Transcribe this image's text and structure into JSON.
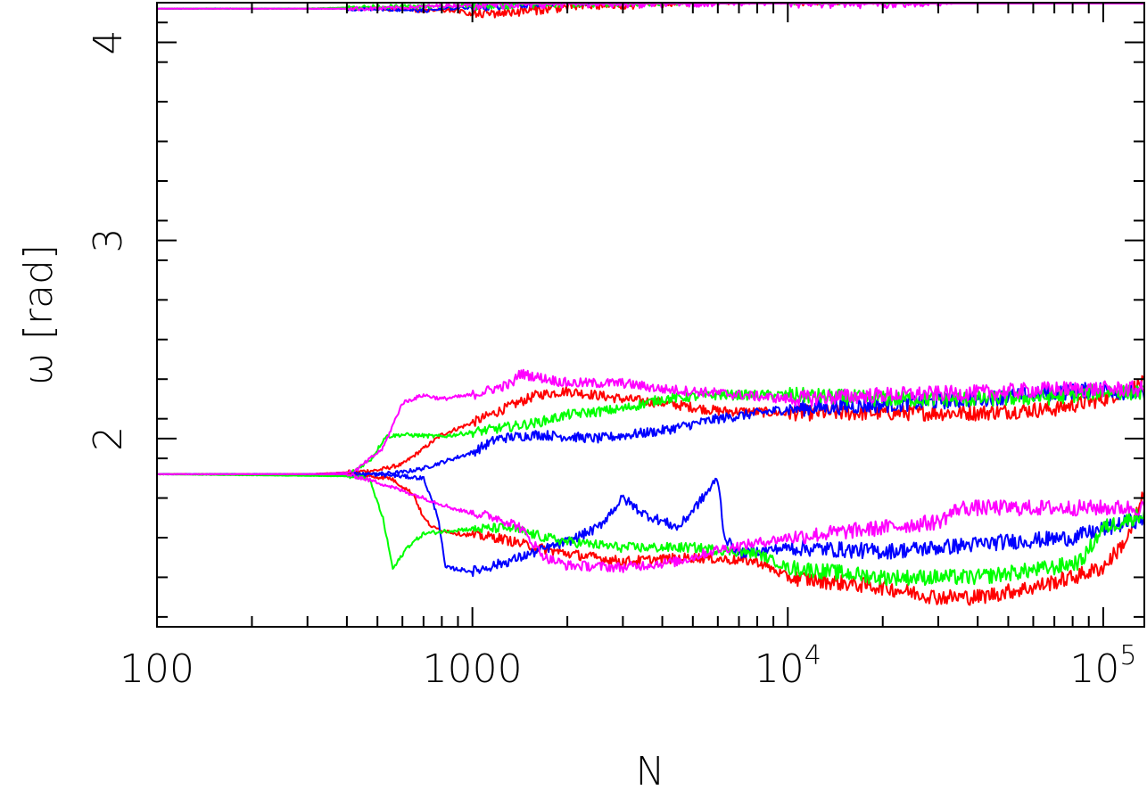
{
  "chart_data": {
    "type": "line",
    "xlabel": "N",
    "ylabel": "ω  [rad]",
    "xscale": "log",
    "xlim": [
      100,
      135000
    ],
    "ylim": [
      1.05,
      4.2
    ],
    "grid": false,
    "x_tick_labels": [
      {
        "value": 100,
        "base": "100",
        "exp": ""
      },
      {
        "value": 1000,
        "base": "1000",
        "exp": ""
      },
      {
        "value": 10000,
        "base": "10",
        "exp": "4"
      },
      {
        "value": 100000,
        "base": "10",
        "exp": "5"
      }
    ],
    "y_tick_labels": [
      {
        "value": 2,
        "label": "2"
      },
      {
        "value": 3,
        "label": "3"
      },
      {
        "value": 4,
        "label": "4"
      }
    ],
    "series": [
      {
        "color": "#ff0000",
        "points": [
          [
            100,
            1.82
          ],
          [
            300,
            1.82
          ],
          [
            400,
            1.83
          ],
          [
            500,
            1.84
          ],
          [
            600,
            1.87
          ],
          [
            700,
            1.95
          ],
          [
            800,
            2.02
          ],
          [
            1000,
            2.08
          ],
          [
            1300,
            2.16
          ],
          [
            1600,
            2.22
          ],
          [
            2000,
            2.24
          ],
          [
            3000,
            2.2
          ],
          [
            4000,
            2.18
          ],
          [
            6000,
            2.14
          ],
          [
            10000,
            2.13
          ],
          [
            20000,
            2.13
          ],
          [
            40000,
            2.13
          ],
          [
            70000,
            2.15
          ],
          [
            100000,
            2.2
          ],
          [
            135000,
            2.28
          ]
        ]
      },
      {
        "color": "#0000ff",
        "points": [
          [
            100,
            1.82
          ],
          [
            300,
            1.82
          ],
          [
            400,
            1.82
          ],
          [
            500,
            1.82
          ],
          [
            600,
            1.83
          ],
          [
            700,
            1.85
          ],
          [
            800,
            1.88
          ],
          [
            1000,
            1.93
          ],
          [
            1200,
            2.0
          ],
          [
            1600,
            2.02
          ],
          [
            2500,
            2.0
          ],
          [
            4000,
            2.04
          ],
          [
            6000,
            2.1
          ],
          [
            10000,
            2.15
          ],
          [
            20000,
            2.17
          ],
          [
            40000,
            2.2
          ],
          [
            70000,
            2.23
          ],
          [
            100000,
            2.25
          ],
          [
            135000,
            2.22
          ]
        ]
      },
      {
        "color": "#00ff00",
        "points": [
          [
            100,
            1.82
          ],
          [
            300,
            1.82
          ],
          [
            400,
            1.81
          ],
          [
            480,
            1.9
          ],
          [
            530,
            2.01
          ],
          [
            600,
            2.02
          ],
          [
            800,
            2.01
          ],
          [
            1200,
            2.05
          ],
          [
            1600,
            2.08
          ],
          [
            2000,
            2.12
          ],
          [
            3000,
            2.15
          ],
          [
            4000,
            2.2
          ],
          [
            6000,
            2.22
          ],
          [
            10000,
            2.22
          ],
          [
            20000,
            2.2
          ],
          [
            40000,
            2.2
          ],
          [
            70000,
            2.21
          ],
          [
            100000,
            2.24
          ],
          [
            135000,
            2.23
          ]
        ]
      },
      {
        "color": "#ff00ff",
        "points": [
          [
            100,
            1.82
          ],
          [
            300,
            1.82
          ],
          [
            420,
            1.83
          ],
          [
            520,
            1.95
          ],
          [
            600,
            2.18
          ],
          [
            700,
            2.22
          ],
          [
            800,
            2.2
          ],
          [
            1000,
            2.22
          ],
          [
            1350,
            2.28
          ],
          [
            1400,
            2.33
          ],
          [
            2000,
            2.28
          ],
          [
            3000,
            2.28
          ],
          [
            4000,
            2.25
          ],
          [
            6000,
            2.23
          ],
          [
            10000,
            2.2
          ],
          [
            20000,
            2.22
          ],
          [
            40000,
            2.23
          ],
          [
            70000,
            2.25
          ],
          [
            100000,
            2.25
          ],
          [
            135000,
            2.25
          ]
        ]
      },
      {
        "color": "#ff0000",
        "points": [
          [
            100,
            1.82
          ],
          [
            400,
            1.82
          ],
          [
            550,
            1.8
          ],
          [
            650,
            1.72
          ],
          [
            700,
            1.6
          ],
          [
            750,
            1.55
          ],
          [
            900,
            1.52
          ],
          [
            1200,
            1.5
          ],
          [
            1600,
            1.45
          ],
          [
            2000,
            1.42
          ],
          [
            3000,
            1.38
          ],
          [
            5000,
            1.4
          ],
          [
            8000,
            1.38
          ],
          [
            10000,
            1.3
          ],
          [
            20000,
            1.25
          ],
          [
            30000,
            1.2
          ],
          [
            40000,
            1.2
          ],
          [
            60000,
            1.25
          ],
          [
            80000,
            1.3
          ],
          [
            100000,
            1.35
          ],
          [
            120000,
            1.5
          ],
          [
            135000,
            1.72
          ]
        ]
      },
      {
        "color": "#0000ff",
        "points": [
          [
            100,
            1.82
          ],
          [
            500,
            1.82
          ],
          [
            700,
            1.8
          ],
          [
            780,
            1.6
          ],
          [
            820,
            1.35
          ],
          [
            1000,
            1.33
          ],
          [
            1300,
            1.38
          ],
          [
            1600,
            1.43
          ],
          [
            2000,
            1.48
          ],
          [
            2500,
            1.55
          ],
          [
            3000,
            1.7
          ],
          [
            3500,
            1.62
          ],
          [
            4500,
            1.55
          ],
          [
            5500,
            1.72
          ],
          [
            6000,
            1.8
          ],
          [
            6300,
            1.5
          ],
          [
            7000,
            1.42
          ],
          [
            10000,
            1.45
          ],
          [
            20000,
            1.43
          ],
          [
            30000,
            1.45
          ],
          [
            50000,
            1.48
          ],
          [
            80000,
            1.5
          ],
          [
            135000,
            1.6
          ]
        ]
      },
      {
        "color": "#00ff00",
        "points": [
          [
            100,
            1.82
          ],
          [
            400,
            1.81
          ],
          [
            470,
            1.8
          ],
          [
            520,
            1.6
          ],
          [
            560,
            1.34
          ],
          [
            620,
            1.45
          ],
          [
            700,
            1.52
          ],
          [
            900,
            1.54
          ],
          [
            1300,
            1.55
          ],
          [
            1700,
            1.5
          ],
          [
            2000,
            1.48
          ],
          [
            3000,
            1.45
          ],
          [
            5000,
            1.45
          ],
          [
            8000,
            1.42
          ],
          [
            10000,
            1.35
          ],
          [
            20000,
            1.3
          ],
          [
            40000,
            1.3
          ],
          [
            70000,
            1.35
          ],
          [
            85000,
            1.38
          ],
          [
            100000,
            1.55
          ],
          [
            135000,
            1.62
          ]
        ]
      },
      {
        "color": "#ff00ff",
        "points": [
          [
            100,
            1.82
          ],
          [
            400,
            1.82
          ],
          [
            500,
            1.78
          ],
          [
            700,
            1.7
          ],
          [
            900,
            1.64
          ],
          [
            1200,
            1.6
          ],
          [
            1400,
            1.56
          ],
          [
            1700,
            1.4
          ],
          [
            2000,
            1.36
          ],
          [
            3000,
            1.35
          ],
          [
            4500,
            1.38
          ],
          [
            6000,
            1.44
          ],
          [
            10000,
            1.5
          ],
          [
            20000,
            1.55
          ],
          [
            30000,
            1.58
          ],
          [
            35000,
            1.65
          ],
          [
            50000,
            1.65
          ],
          [
            80000,
            1.65
          ],
          [
            135000,
            1.65
          ]
        ]
      },
      {
        "color": "#ff0000",
        "points": [
          [
            100,
            4.17
          ],
          [
            300,
            4.17
          ],
          [
            500,
            4.17
          ],
          [
            700,
            4.16
          ],
          [
            900,
            4.16
          ],
          [
            1000,
            4.14
          ],
          [
            1500,
            4.16
          ],
          [
            2000,
            4.18
          ],
          [
            4000,
            4.2
          ],
          [
            8000,
            4.22
          ],
          [
            15000,
            4.23
          ],
          [
            30000,
            4.24
          ],
          [
            60000,
            4.25
          ],
          [
            135000,
            4.25
          ]
        ]
      },
      {
        "color": "#0000ff",
        "points": [
          [
            100,
            4.17
          ],
          [
            300,
            4.17
          ],
          [
            500,
            4.17
          ],
          [
            700,
            4.16
          ],
          [
            1000,
            4.18
          ],
          [
            1500,
            4.2
          ],
          [
            2000,
            4.21
          ],
          [
            4000,
            4.22
          ],
          [
            8000,
            4.23
          ],
          [
            15000,
            4.24
          ],
          [
            30000,
            4.24
          ],
          [
            60000,
            4.25
          ],
          [
            135000,
            4.25
          ]
        ]
      },
      {
        "color": "#00ff00",
        "points": [
          [
            100,
            4.17
          ],
          [
            300,
            4.17
          ],
          [
            500,
            4.18
          ],
          [
            800,
            4.18
          ],
          [
            1200,
            4.19
          ],
          [
            2000,
            4.2
          ],
          [
            4000,
            4.21
          ],
          [
            8000,
            4.22
          ],
          [
            15000,
            4.23
          ],
          [
            30000,
            4.24
          ],
          [
            60000,
            4.25
          ],
          [
            135000,
            4.25
          ]
        ]
      },
      {
        "color": "#ff00ff",
        "points": [
          [
            100,
            4.17
          ],
          [
            300,
            4.17
          ],
          [
            500,
            4.17
          ],
          [
            700,
            4.18
          ],
          [
            1000,
            4.19
          ],
          [
            2000,
            4.2
          ],
          [
            4000,
            4.2
          ],
          [
            8000,
            4.21
          ],
          [
            15000,
            4.21
          ],
          [
            28000,
            4.21
          ],
          [
            35000,
            4.24
          ],
          [
            60000,
            4.25
          ],
          [
            135000,
            4.25
          ]
        ]
      }
    ]
  }
}
